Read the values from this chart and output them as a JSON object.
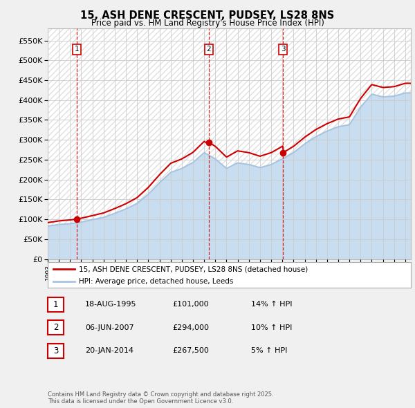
{
  "title": "15, ASH DENE CRESCENT, PUDSEY, LS28 8NS",
  "subtitle": "Price paid vs. HM Land Registry's House Price Index (HPI)",
  "ylabel_ticks": [
    "£0",
    "£50K",
    "£100K",
    "£150K",
    "£200K",
    "£250K",
    "£300K",
    "£350K",
    "£400K",
    "£450K",
    "£500K",
    "£550K"
  ],
  "ylim": [
    0,
    580000
  ],
  "ytick_vals": [
    0,
    50000,
    100000,
    150000,
    200000,
    250000,
    300000,
    350000,
    400000,
    450000,
    500000,
    550000
  ],
  "sale_prices": [
    101000,
    294000,
    267500
  ],
  "sale_labels": [
    "1",
    "2",
    "3"
  ],
  "legend_house": "15, ASH DENE CRESCENT, PUDSEY, LS28 8NS (detached house)",
  "legend_hpi": "HPI: Average price, detached house, Leeds",
  "table_rows": [
    {
      "label": "1",
      "date": "18-AUG-1995",
      "price": "£101,000",
      "hpi": "14% ↑ HPI"
    },
    {
      "label": "2",
      "date": "06-JUN-2007",
      "price": "£294,000",
      "hpi": "10% ↑ HPI"
    },
    {
      "label": "3",
      "date": "20-JAN-2014",
      "price": "£267,500",
      "hpi": "5% ↑ HPI"
    }
  ],
  "footnote": "Contains HM Land Registry data © Crown copyright and database right 2025.\nThis data is licensed under the Open Government Licence v3.0.",
  "hpi_color": "#a8c4e0",
  "hpi_fill_color": "#c8ddf0",
  "house_color": "#cc0000",
  "background_color": "#f0f0f0",
  "plot_bg_color": "#ffffff",
  "grid_color": "#cccccc",
  "hatch_color": "#e0e0e0",
  "hpi_years": [
    1993,
    1994,
    1995,
    1996,
    1997,
    1998,
    1999,
    2000,
    2001,
    2002,
    2003,
    2004,
    2005,
    2006,
    2007,
    2008,
    2009,
    2010,
    2011,
    2012,
    2013,
    2014,
    2015,
    2016,
    2017,
    2018,
    2019,
    2020,
    2021,
    2022,
    2023,
    2024,
    2025
  ],
  "hpi_values": [
    83000,
    87000,
    89000,
    93000,
    99000,
    105000,
    115000,
    126000,
    140000,
    163000,
    192000,
    218000,
    228000,
    243000,
    268000,
    252000,
    228000,
    242000,
    238000,
    230000,
    238000,
    252000,
    268000,
    290000,
    308000,
    322000,
    333000,
    338000,
    382000,
    415000,
    408000,
    410000,
    418000
  ],
  "sale_year_floats": [
    1995.6,
    2007.42,
    2014.05
  ],
  "xlim_start": 1993.0,
  "xlim_end": 2025.5
}
